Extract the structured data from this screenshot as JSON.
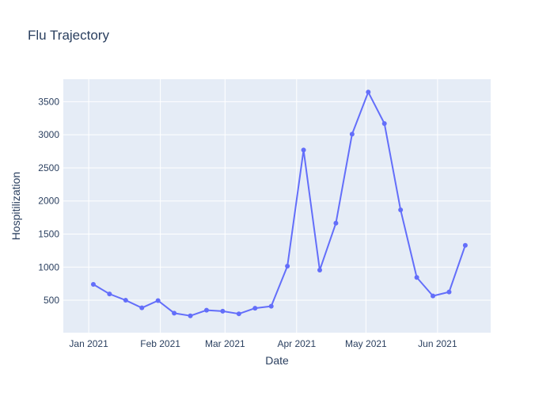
{
  "chart_data": {
    "type": "line",
    "title": "Flu Trajectory",
    "xlabel": "Date",
    "ylabel": "Hospitilization",
    "x_ticks": [
      {
        "date": "2021-01-01",
        "label": "Jan 2021"
      },
      {
        "date": "2021-02-01",
        "label": "Feb 2021"
      },
      {
        "date": "2021-03-01",
        "label": "Mar 2021"
      },
      {
        "date": "2021-04-01",
        "label": "Apr 2021"
      },
      {
        "date": "2021-05-01",
        "label": "May 2021"
      },
      {
        "date": "2021-06-01",
        "label": "Jun 2021"
      }
    ],
    "y_ticks": [
      500,
      1000,
      1500,
      2000,
      2500,
      3000,
      3500
    ],
    "xlim": [
      "2020-12-21",
      "2021-06-24"
    ],
    "ylim": [
      10,
      3840
    ],
    "grid": true,
    "series": [
      {
        "color": "#636efa",
        "mode": "lines+markers",
        "x": [
          "2021-01-03",
          "2021-01-10",
          "2021-01-17",
          "2021-01-24",
          "2021-01-31",
          "2021-02-07",
          "2021-02-14",
          "2021-02-21",
          "2021-02-28",
          "2021-03-07",
          "2021-03-14",
          "2021-03-21",
          "2021-03-28",
          "2021-04-04",
          "2021-04-11",
          "2021-04-18",
          "2021-04-25",
          "2021-05-02",
          "2021-05-09",
          "2021-05-16",
          "2021-05-23",
          "2021-05-30",
          "2021-06-06",
          "2021-06-13"
        ],
        "y": [
          740,
          595,
          500,
          385,
          495,
          305,
          265,
          350,
          335,
          295,
          380,
          410,
          1015,
          2770,
          955,
          1665,
          3010,
          3645,
          3170,
          1865,
          845,
          565,
          625,
          1330
        ]
      }
    ]
  }
}
